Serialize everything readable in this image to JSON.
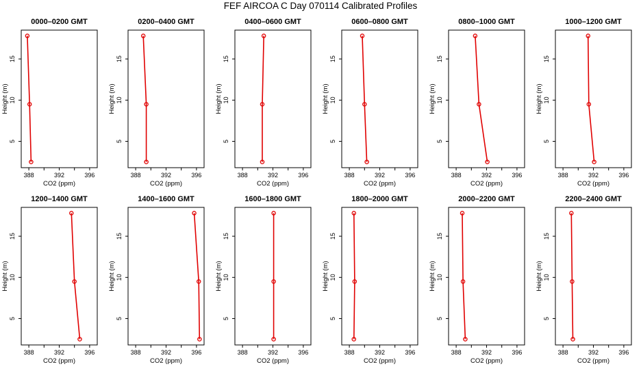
{
  "figure": {
    "title": "FEF AIRCOA C  Day 070114  Calibrated Profiles"
  },
  "chart_data": [
    {
      "type": "line",
      "title": "0000–0200 GMT",
      "xlabel": "CO2 (ppm)",
      "ylabel": "Height (m)",
      "xlim": [
        387,
        397
      ],
      "ylim": [
        1.8,
        18.5
      ],
      "xticks": [
        388,
        392,
        396
      ],
      "yticks": [
        5,
        10,
        15
      ],
      "series": [
        {
          "x": [
            387.8,
            388.1,
            388.3
          ],
          "y": [
            17.8,
            9.5,
            2.5
          ]
        }
      ]
    },
    {
      "type": "line",
      "title": "0200–0400 GMT",
      "xlabel": "CO2 (ppm)",
      "ylabel": "Height (m)",
      "xlim": [
        387,
        397
      ],
      "ylim": [
        1.8,
        18.5
      ],
      "xticks": [
        388,
        392,
        396
      ],
      "yticks": [
        5,
        10,
        15
      ],
      "series": [
        {
          "x": [
            389.0,
            389.4,
            389.4
          ],
          "y": [
            17.8,
            9.5,
            2.5
          ]
        }
      ]
    },
    {
      "type": "line",
      "title": "0400–0600 GMT",
      "xlabel": "CO2 (ppm)",
      "ylabel": "Height (m)",
      "xlim": [
        387,
        397
      ],
      "ylim": [
        1.8,
        18.5
      ],
      "xticks": [
        388,
        392,
        396
      ],
      "yticks": [
        5,
        10,
        15
      ],
      "series": [
        {
          "x": [
            390.8,
            390.6,
            390.6
          ],
          "y": [
            17.8,
            9.5,
            2.5
          ]
        }
      ]
    },
    {
      "type": "line",
      "title": "0600–0800 GMT",
      "xlabel": "CO2 (ppm)",
      "ylabel": "Height (m)",
      "xlim": [
        387,
        397
      ],
      "ylim": [
        1.8,
        18.5
      ],
      "xticks": [
        388,
        392,
        396
      ],
      "yticks": [
        5,
        10,
        15
      ],
      "series": [
        {
          "x": [
            389.7,
            390.0,
            390.3
          ],
          "y": [
            17.8,
            9.5,
            2.5
          ]
        }
      ]
    },
    {
      "type": "line",
      "title": "0800–1000 GMT",
      "xlabel": "CO2 (ppm)",
      "ylabel": "Height (m)",
      "xlim": [
        387,
        397
      ],
      "ylim": [
        1.8,
        18.5
      ],
      "xticks": [
        388,
        392,
        396
      ],
      "yticks": [
        5,
        10,
        15
      ],
      "series": [
        {
          "x": [
            390.5,
            391.0,
            392.1
          ],
          "y": [
            17.8,
            9.5,
            2.5
          ]
        }
      ]
    },
    {
      "type": "line",
      "title": "1000–1200 GMT",
      "xlabel": "CO2 (ppm)",
      "ylabel": "Height (m)",
      "xlim": [
        387,
        397
      ],
      "ylim": [
        1.8,
        18.5
      ],
      "xticks": [
        388,
        392,
        396
      ],
      "yticks": [
        5,
        10,
        15
      ],
      "series": [
        {
          "x": [
            391.3,
            391.4,
            392.1
          ],
          "y": [
            17.8,
            9.5,
            2.5
          ]
        }
      ]
    },
    {
      "type": "line",
      "title": "1200–1400 GMT",
      "xlabel": "CO2 (ppm)",
      "ylabel": "Height (m)",
      "xlim": [
        387,
        397
      ],
      "ylim": [
        1.8,
        18.5
      ],
      "xticks": [
        388,
        392,
        396
      ],
      "yticks": [
        5,
        10,
        15
      ],
      "series": [
        {
          "x": [
            393.6,
            394.0,
            394.7
          ],
          "y": [
            17.8,
            9.5,
            2.5
          ]
        }
      ]
    },
    {
      "type": "line",
      "title": "1400–1600 GMT",
      "xlabel": "CO2 (ppm)",
      "ylabel": "Height (m)",
      "xlim": [
        387,
        397
      ],
      "ylim": [
        1.8,
        18.5
      ],
      "xticks": [
        388,
        392,
        396
      ],
      "yticks": [
        5,
        10,
        15
      ],
      "series": [
        {
          "x": [
            395.7,
            396.3,
            396.4
          ],
          "y": [
            17.8,
            9.5,
            2.5
          ]
        }
      ]
    },
    {
      "type": "line",
      "title": "1600–1800 GMT",
      "xlabel": "CO2 (ppm)",
      "ylabel": "Height (m)",
      "xlim": [
        387,
        397
      ],
      "ylim": [
        1.8,
        18.5
      ],
      "xticks": [
        388,
        392,
        396
      ],
      "yticks": [
        5,
        10,
        15
      ],
      "series": [
        {
          "x": [
            392.1,
            392.1,
            392.1
          ],
          "y": [
            17.8,
            9.5,
            2.5
          ]
        }
      ]
    },
    {
      "type": "line",
      "title": "1800–2000 GMT",
      "xlabel": "CO2 (ppm)",
      "ylabel": "Height (m)",
      "xlim": [
        387,
        397
      ],
      "ylim": [
        1.8,
        18.5
      ],
      "xticks": [
        388,
        392,
        396
      ],
      "yticks": [
        5,
        10,
        15
      ],
      "series": [
        {
          "x": [
            388.6,
            388.7,
            388.6
          ],
          "y": [
            17.8,
            9.5,
            2.5
          ]
        }
      ]
    },
    {
      "type": "line",
      "title": "2000–2200 GMT",
      "xlabel": "CO2 (ppm)",
      "ylabel": "Height (m)",
      "xlim": [
        387,
        397
      ],
      "ylim": [
        1.8,
        18.5
      ],
      "xticks": [
        388,
        392,
        396
      ],
      "yticks": [
        5,
        10,
        15
      ],
      "series": [
        {
          "x": [
            388.8,
            388.9,
            389.2
          ],
          "y": [
            17.8,
            9.5,
            2.5
          ]
        }
      ]
    },
    {
      "type": "line",
      "title": "2200–2400 GMT",
      "xlabel": "CO2 (ppm)",
      "ylabel": "Height (m)",
      "xlim": [
        387,
        397
      ],
      "ylim": [
        1.8,
        18.5
      ],
      "xticks": [
        388,
        392,
        396
      ],
      "yticks": [
        5,
        10,
        15
      ],
      "series": [
        {
          "x": [
            389.1,
            389.2,
            389.3
          ],
          "y": [
            17.8,
            9.5,
            2.5
          ]
        }
      ]
    }
  ],
  "colors": {
    "series": "#e00000",
    "marker": "#e00000",
    "axis": "#000000"
  },
  "grid": false,
  "legend": "none"
}
